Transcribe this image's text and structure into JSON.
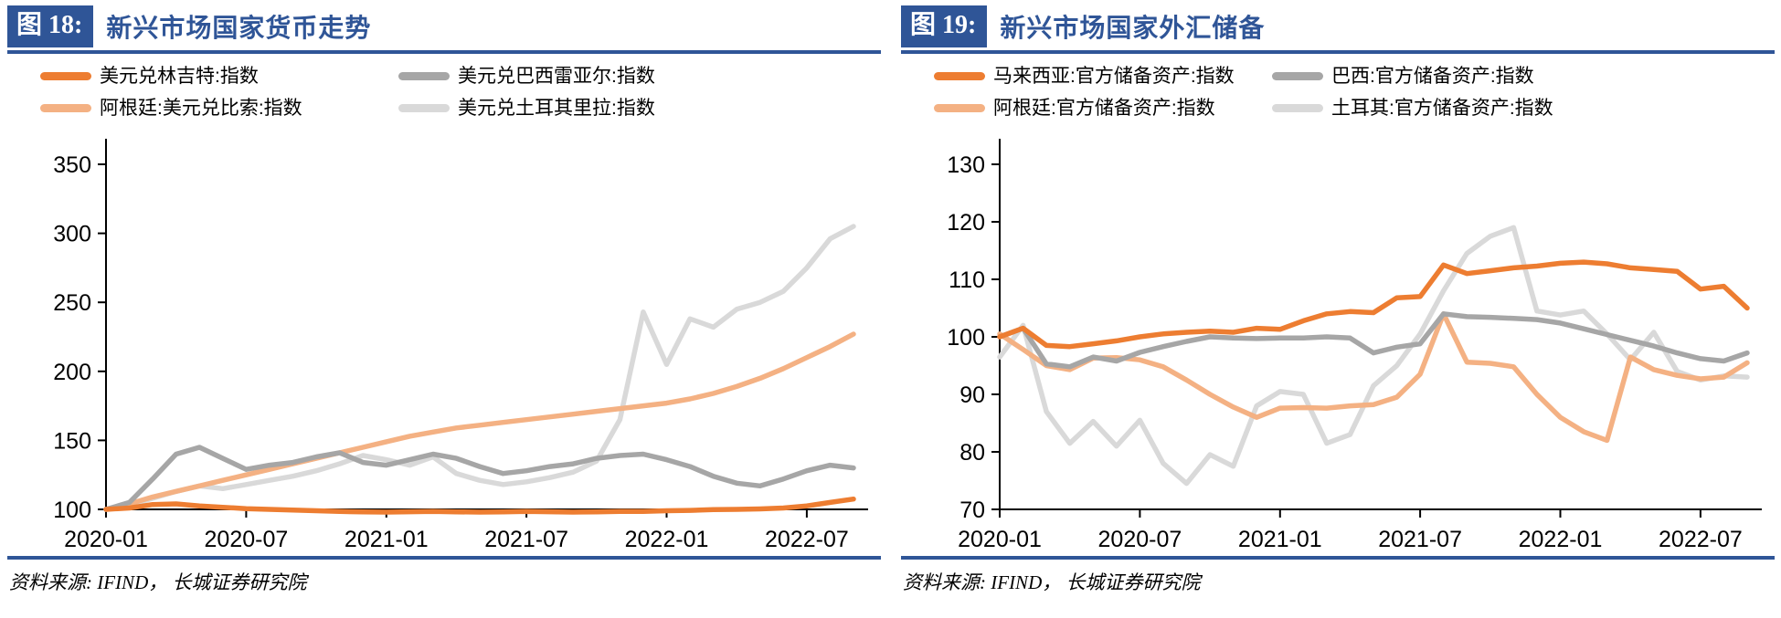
{
  "figures": [
    {
      "badge": "图 18:",
      "title": "新兴市场国家货币走势",
      "source": "资料来源: IFIND， 长城证券研究院"
    },
    {
      "badge": "图 19:",
      "title": "新兴市场国家外汇储备",
      "source": "资料来源: IFIND， 长城证券研究院"
    }
  ],
  "chart_data": [
    {
      "type": "line",
      "title": "新兴市场国家货币走势",
      "x_start": "2020-01",
      "x_frequency": "monthly",
      "n_points": 33,
      "x_tick_labels": [
        "2020-01",
        "2020-07",
        "2021-01",
        "2021-07",
        "2022-01",
        "2022-07"
      ],
      "x_tick_indices": [
        0,
        6,
        12,
        18,
        24,
        30
      ],
      "ylim": [
        100,
        350
      ],
      "yticks": [
        100,
        150,
        200,
        250,
        300,
        350
      ],
      "grid": false,
      "legend_position": "top",
      "series": [
        {
          "name": "美元兑土耳其里拉:指数",
          "color": "#D9D9D9",
          "values": [
            100,
            103,
            108,
            113,
            117,
            115,
            118,
            121,
            124,
            128,
            133,
            139,
            136,
            132,
            138,
            126,
            121,
            118,
            120,
            123,
            127,
            135,
            165,
            243,
            205,
            238,
            232,
            245,
            250,
            258,
            275,
            296,
            305
          ]
        },
        {
          "name": "阿根廷:美元兑比索:指数",
          "color": "#F4B183",
          "values": [
            100,
            104,
            109,
            113,
            117,
            121,
            125,
            129,
            133,
            137,
            141,
            145,
            149,
            153,
            156,
            159,
            161,
            163,
            165,
            167,
            169,
            171,
            173,
            175,
            177,
            180,
            184,
            189,
            195,
            202,
            210,
            218,
            227
          ]
        },
        {
          "name": "美元兑巴西雷亚尔:指数",
          "color": "#A6A6A6",
          "values": [
            100,
            105,
            122,
            140,
            145,
            137,
            129,
            132,
            134,
            138,
            141,
            134,
            132,
            136,
            140,
            137,
            131,
            126,
            128,
            131,
            133,
            137,
            139,
            140,
            136,
            131,
            124,
            119,
            117,
            122,
            128,
            132,
            130
          ]
        },
        {
          "name": "美元兑林吉特:指数",
          "color": "#ED7D31",
          "values": [
            100,
            101,
            103.5,
            104,
            102.5,
            101.5,
            100.5,
            100,
            99.5,
            99,
            98.5,
            98.2,
            98,
            98.3,
            98.5,
            98.2,
            98,
            98.2,
            98.5,
            98.3,
            98,
            98.2,
            98.5,
            98.5,
            99,
            99.3,
            99.8,
            100,
            100.3,
            101,
            102.5,
            105,
            107.5
          ]
        }
      ]
    },
    {
      "type": "line",
      "title": "新兴市场国家外汇储备",
      "x_start": "2020-01",
      "x_frequency": "monthly",
      "n_points": 33,
      "x_tick_labels": [
        "2020-01",
        "2020-07",
        "2021-01",
        "2021-07",
        "2022-01",
        "2022-07"
      ],
      "x_tick_indices": [
        0,
        6,
        12,
        18,
        24,
        30
      ],
      "ylim": [
        70,
        130
      ],
      "yticks": [
        70,
        80,
        90,
        100,
        110,
        120,
        130
      ],
      "grid": false,
      "legend_position": "top",
      "series": [
        {
          "name": "土耳其:官方储备资产:指数",
          "color": "#D9D9D9",
          "values": [
            96.5,
            102,
            87,
            81.5,
            85.3,
            81,
            85.5,
            78,
            74.5,
            79.5,
            77.5,
            88,
            90.5,
            90,
            81.5,
            83,
            91.5,
            95,
            100.5,
            108,
            114.5,
            117.5,
            119,
            104.5,
            103.8,
            104.5,
            100.5,
            96,
            100.8,
            94,
            92.5,
            93.2,
            93
          ]
        },
        {
          "name": "阿根廷:官方储备资产:指数",
          "color": "#F4B183",
          "values": [
            100.5,
            97.8,
            95,
            94.3,
            96.3,
            96.4,
            96,
            94.8,
            92.5,
            90,
            87.8,
            86,
            87.6,
            87.7,
            87.6,
            88,
            88.2,
            89.5,
            93.5,
            104,
            95.6,
            95.4,
            94.8,
            90,
            86,
            83.5,
            82,
            96.5,
            94.3,
            93.3,
            92.7,
            93,
            95.5
          ]
        },
        {
          "name": "巴西:官方储备资产:指数",
          "color": "#A6A6A6",
          "values": [
            100,
            101.5,
            95.3,
            94.8,
            96.5,
            95.8,
            97.3,
            98.3,
            99.2,
            100,
            99.8,
            99.7,
            99.8,
            99.8,
            100,
            99.8,
            97.2,
            98.2,
            98.8,
            104,
            103.5,
            103.4,
            103.2,
            103,
            102.4,
            101.4,
            100.4,
            99.4,
            98.4,
            97.2,
            96.2,
            95.8,
            97.2
          ]
        },
        {
          "name": "马来西亚:官方储备资产:指数",
          "color": "#ED7D31",
          "values": [
            100,
            101.5,
            98.5,
            98.3,
            98.8,
            99.3,
            100,
            100.5,
            100.8,
            101,
            100.8,
            101.5,
            101.3,
            102.8,
            104,
            104.4,
            104.2,
            106.8,
            107,
            112.5,
            111,
            111.5,
            112,
            112.3,
            112.8,
            113,
            112.7,
            112,
            111.7,
            111.4,
            108.3,
            108.8,
            105
          ]
        }
      ]
    }
  ]
}
